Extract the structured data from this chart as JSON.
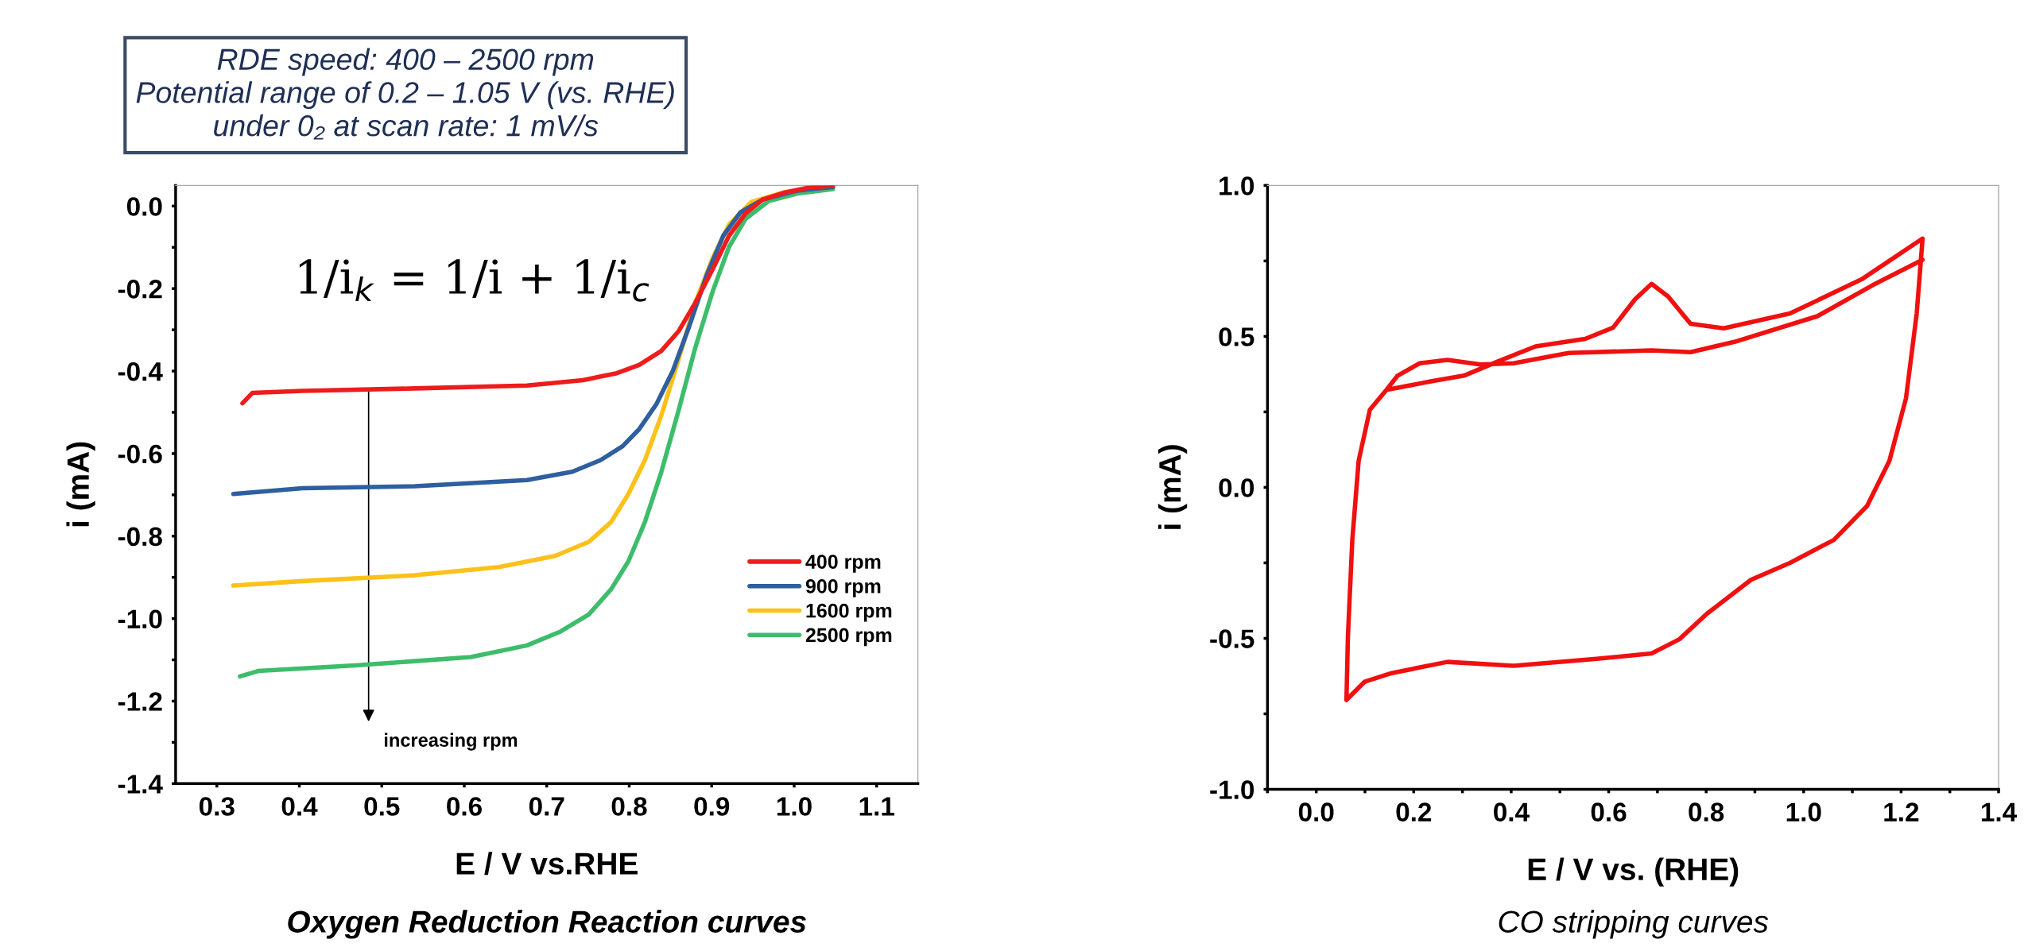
{
  "chart_data": [
    {
      "type": "line",
      "subtitle": "RDE speed: 400 – 2500 rpm\nPotential range of 0.2 – 1.05 V (vs. RHE)\nunder 0₂ at scan rate: 1 mV/s",
      "xlabel": "E / V vs.RHE",
      "ylabel": "i (mA)",
      "xlim": [
        0.25,
        1.15
      ],
      "ylim": [
        -1.4,
        0.05
      ],
      "xticks": [
        0.3,
        0.4,
        0.5,
        0.6,
        0.7,
        0.8,
        0.9,
        {
          "value": 1,
          "label": "1.0"
        },
        1.1
      ],
      "yticks": [
        {
          "value": 0,
          "label": "0.0"
        },
        {
          "value": -0.1,
          "label": null
        },
        -0.2,
        {
          "value": -0.3,
          "label": null
        },
        -0.4,
        {
          "value": -0.5,
          "label": null
        },
        -0.6,
        {
          "value": -0.7,
          "label": null
        },
        -0.8,
        {
          "value": -0.9,
          "label": null
        },
        {
          "value": -1,
          "label": "-1.0"
        },
        {
          "value": -1.1,
          "label": null
        },
        -1.2,
        {
          "value": -1.3,
          "label": null
        },
        -1.4
      ],
      "grid": false,
      "legend": "bottom right",
      "marker": "none",
      "line_style": "solid",
      "annotations": [
        "1/i$_{k}$ = 1/i + 1/i$_{c}$",
        "increasing rpm",
        "Oxygen Reduction Reaction curves"
      ],
      "series": [
        {
          "name": "400 rpm",
          "color": "#ee1c1c",
          "x": [
            0.331,
            0.343,
            0.404,
            0.54,
            0.676,
            0.744,
            0.785,
            0.812,
            0.839,
            0.86,
            0.88,
            0.901,
            0.921,
            0.941,
            0.962,
            0.989,
            1.016,
            1.047
          ],
          "values": [
            -0.478,
            -0.453,
            -0.448,
            -0.442,
            -0.435,
            -0.422,
            -0.405,
            -0.385,
            -0.351,
            -0.303,
            -0.235,
            -0.154,
            -0.072,
            -0.018,
            0.016,
            0.033,
            0.044,
            0.05
          ]
        },
        {
          "name": "900 rpm",
          "color": "#2e5f9e",
          "x": [
            0.32,
            0.404,
            0.54,
            0.676,
            0.731,
            0.765,
            0.792,
            0.812,
            0.833,
            0.853,
            0.873,
            0.894,
            0.914,
            0.935,
            0.962,
            1.003,
            1.047
          ],
          "values": [
            -0.698,
            -0.684,
            -0.679,
            -0.664,
            -0.644,
            -0.616,
            -0.582,
            -0.541,
            -0.48,
            -0.399,
            -0.29,
            -0.167,
            -0.072,
            -0.015,
            0.016,
            0.037,
            0.046
          ]
        },
        {
          "name": "1600 rpm",
          "color": "#fcc11a",
          "x": [
            0.32,
            0.404,
            0.54,
            0.642,
            0.71,
            0.751,
            0.778,
            0.799,
            0.819,
            0.839,
            0.86,
            0.88,
            0.901,
            0.921,
            0.948,
            0.989,
            1.047
          ],
          "values": [
            -0.92,
            -0.909,
            -0.895,
            -0.875,
            -0.848,
            -0.814,
            -0.766,
            -0.698,
            -0.616,
            -0.507,
            -0.371,
            -0.235,
            -0.127,
            -0.045,
            0.01,
            0.034,
            0.046
          ]
        },
        {
          "name": "2500 rpm",
          "color": "#3dbd6b",
          "x": [
            0.328,
            0.35,
            0.472,
            0.608,
            0.676,
            0.717,
            0.751,
            0.778,
            0.799,
            0.819,
            0.839,
            0.86,
            0.88,
            0.901,
            0.921,
            0.941,
            0.969,
            1.003,
            1.047
          ],
          "values": [
            -1.14,
            -1.127,
            -1.113,
            -1.093,
            -1.065,
            -1.031,
            -0.99,
            -0.929,
            -0.861,
            -0.766,
            -0.644,
            -0.494,
            -0.344,
            -0.208,
            -0.099,
            -0.031,
            0.012,
            0.03,
            0.041
          ]
        }
      ]
    },
    {
      "type": "line",
      "xlabel": "E / V vs. (RHE)",
      "ylabel": "i (mA)",
      "xlim": [
        -0.1,
        1.4
      ],
      "ylim": [
        -1.0,
        1.0
      ],
      "xticks": [
        {
          "value": -0.1,
          "label": null
        },
        {
          "value": 0,
          "label": "0.0"
        },
        {
          "value": 0.1,
          "label": null
        },
        0.2,
        {
          "value": 0.3,
          "label": null
        },
        0.4,
        {
          "value": 0.5,
          "label": null
        },
        0.6,
        {
          "value": 0.7,
          "label": null
        },
        0.8,
        {
          "value": 0.9,
          "label": null
        },
        {
          "value": 1,
          "label": "1.0"
        },
        {
          "value": 1.1,
          "label": null
        },
        1.2,
        {
          "value": 1.3,
          "label": null
        },
        1.4
      ],
      "yticks": [
        {
          "value": -1,
          "label": "-1.0"
        },
        {
          "value": -0.75,
          "label": null
        },
        -0.5,
        {
          "value": -0.25,
          "label": null
        },
        {
          "value": 0,
          "label": "0.0"
        },
        {
          "value": 0.25,
          "label": null
        },
        0.5,
        {
          "value": 0.75,
          "label": null
        },
        {
          "value": 1,
          "label": "1.0"
        }
      ],
      "grid": false,
      "marker": "none",
      "line_style": "solid",
      "annotations": [
        "CO stripping curves"
      ],
      "series": [
        {
          "color": "#f01010",
          "x": [
            0.062,
            0.065,
            0.074,
            0.087,
            0.11,
            0.144,
            0.235,
            0.303,
            0.371,
            0.45,
            0.552,
            0.609,
            0.654,
            0.688,
            0.722,
            0.768,
            0.836,
            0.972,
            1.119,
            1.244,
            1.232,
            1.21,
            1.176,
            1.13,
            1.062,
            0.972,
            0.892,
            0.802,
            0.745,
            0.688,
            0.575,
            0.405,
            0.269,
            0.155,
            0.099,
            0.062,
            0.065,
            0.074,
            0.087,
            0.11,
            0.144,
            0.167,
            0.212,
            0.269,
            0.337,
            0.405,
            0.518,
            0.688,
            0.768,
            0.858,
            1.028,
            1.142,
            1.244
          ],
          "values": [
            -0.704,
            -0.493,
            -0.174,
            0.088,
            0.257,
            0.323,
            0.351,
            0.37,
            0.416,
            0.467,
            0.492,
            0.529,
            0.623,
            0.674,
            0.632,
            0.542,
            0.527,
            0.576,
            0.689,
            0.824,
            0.576,
            0.295,
            0.088,
            -0.062,
            -0.174,
            -0.25,
            -0.306,
            -0.418,
            -0.503,
            -0.55,
            -0.568,
            -0.591,
            -0.578,
            -0.615,
            -0.644,
            -0.704,
            -0.493,
            -0.174,
            0.088,
            0.257,
            0.323,
            0.37,
            0.411,
            0.422,
            0.407,
            0.411,
            0.445,
            0.454,
            0.448,
            0.482,
            0.567,
            0.67,
            0.754
          ]
        }
      ]
    }
  ]
}
